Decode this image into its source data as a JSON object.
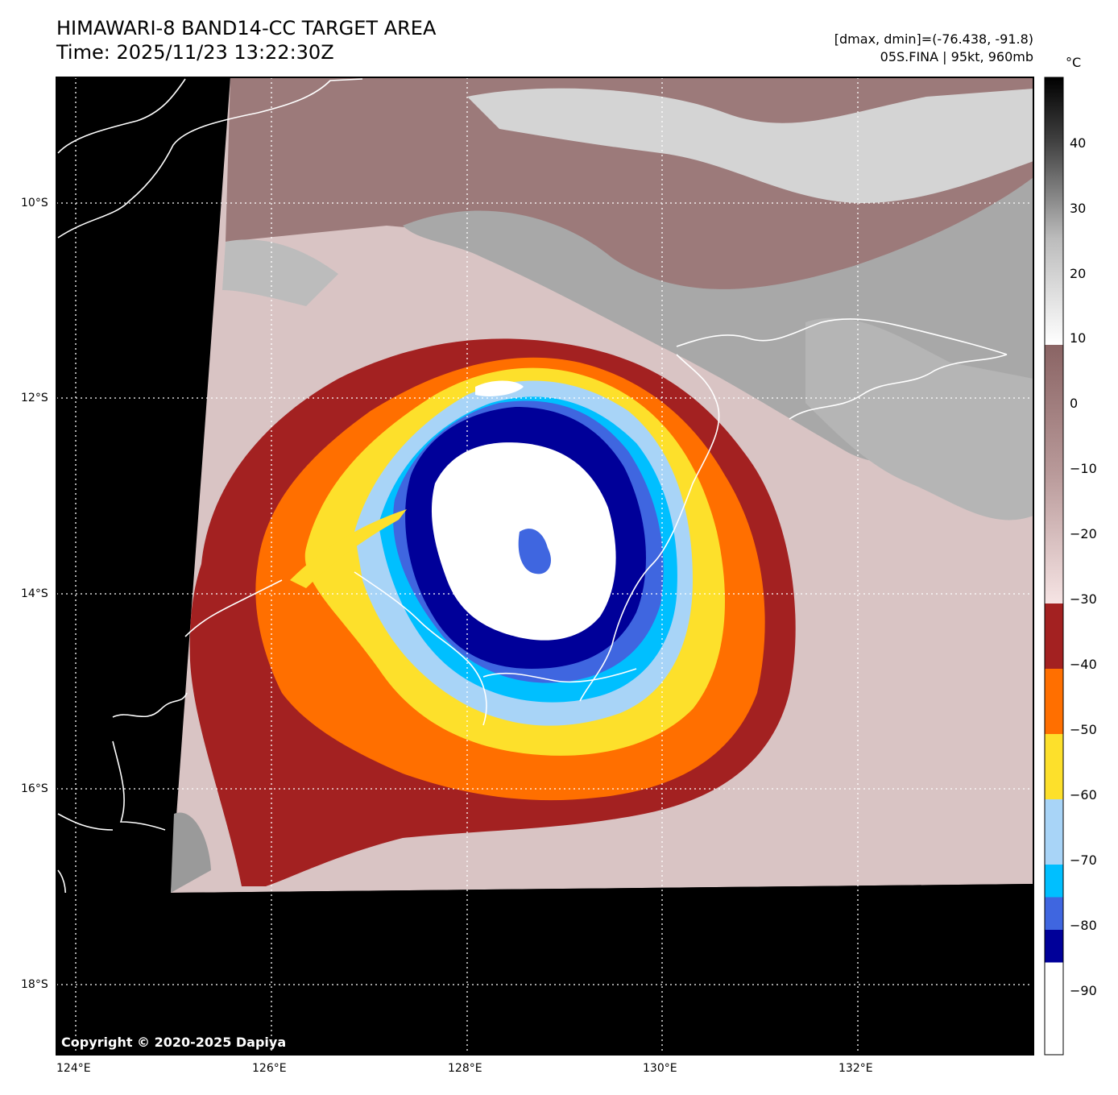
{
  "header": {
    "title_line1": "HIMAWARI-8 BAND14-CC TARGET AREA",
    "title_line2": "Time: 2025/11/23 13:22:30Z",
    "range_text": "[dmax, dmin]=(-76.438, -91.8)",
    "storm_text": "05S.FINA | 95kt, 960mb"
  },
  "map": {
    "lat_labels": [
      "10°S",
      "12°S",
      "14°S",
      "16°S",
      "18°S"
    ],
    "lon_labels": [
      "124°E",
      "126°E",
      "128°E",
      "130°E",
      "132°E"
    ],
    "no_data_color": "#000000",
    "coastline_color": "#ffffff",
    "grid_color": "#ffffff"
  },
  "colorbar": {
    "unit": "°C",
    "ticks": [
      "40",
      "30",
      "20",
      "10",
      "0",
      "−10",
      "−20",
      "−30",
      "−40",
      "−50",
      "−60",
      "−70",
      "−80",
      "−90"
    ],
    "segments": [
      {
        "from": -30,
        "to": -40,
        "color": "#a32121"
      },
      {
        "from": -40,
        "to": -50,
        "color": "#ff6f00"
      },
      {
        "from": -50,
        "to": -60,
        "color": "#fde02b"
      },
      {
        "from": -60,
        "to": -70,
        "color": "#a8d4f7"
      },
      {
        "from": -70,
        "to": -75,
        "color": "#00bfff"
      },
      {
        "from": -75,
        "to": -80,
        "color": "#3f66e0"
      },
      {
        "from": -80,
        "to": -85,
        "color": "#000099"
      },
      {
        "from": -85,
        "to": -100,
        "color": "#ffffff"
      }
    ]
  },
  "footer": {
    "copyright": "Copyright © 2020-2025 Dapiya"
  }
}
